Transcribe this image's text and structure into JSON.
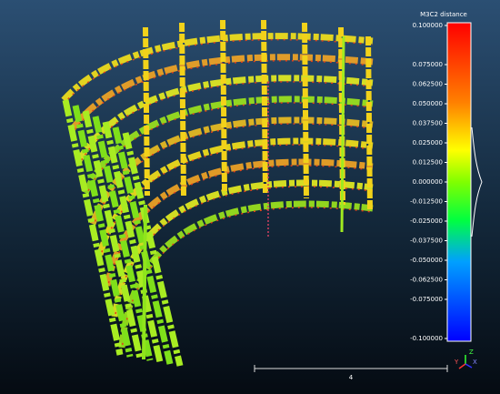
{
  "color_scale": {
    "title": "M3C2 distance",
    "range": [
      -0.1,
      0.1
    ],
    "ticks": [
      {
        "value": 0.1,
        "label": "0.100000"
      },
      {
        "value": 0.075,
        "label": "0.075000"
      },
      {
        "value": 0.0625,
        "label": "0.062500"
      },
      {
        "value": 0.05,
        "label": "0.050000"
      },
      {
        "value": 0.0375,
        "label": "0.037500"
      },
      {
        "value": 0.025,
        "label": "0.025000"
      },
      {
        "value": 0.0125,
        "label": "0.012500"
      },
      {
        "value": 0,
        "label": "0.000000"
      },
      {
        "value": -0.0125,
        "label": "-0.012500"
      },
      {
        "value": -0.025,
        "label": "-0.025000"
      },
      {
        "value": -0.0375,
        "label": "-0.037500"
      },
      {
        "value": -0.05,
        "label": "-0.050000"
      },
      {
        "value": -0.0625,
        "label": "-0.062500"
      },
      {
        "value": -0.075,
        "label": "-0.075000"
      },
      {
        "value": -0.1,
        "label": "-0.100000"
      }
    ]
  },
  "scale_bar": {
    "label": "4"
  },
  "axes": {
    "z": "Z",
    "y": "Y",
    "x": "X"
  }
}
